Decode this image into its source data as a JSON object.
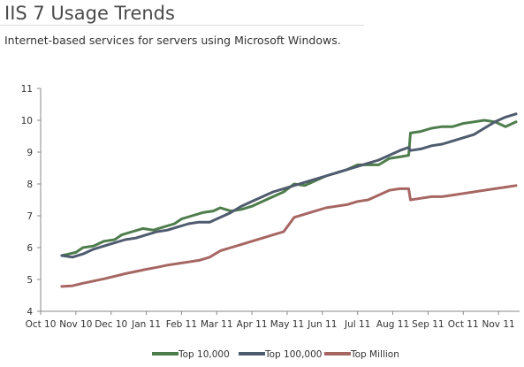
{
  "header": {
    "title": "IIS 7 Usage Trends",
    "subtitle": "Internet-based services for servers using Microsoft Windows."
  },
  "chart_data": {
    "type": "line",
    "title": "",
    "xlabel": "",
    "ylabel": "",
    "ylim": [
      4,
      11
    ],
    "yticks": [
      4,
      5,
      6,
      7,
      8,
      9,
      10,
      11
    ],
    "x_tick_labels": [
      "Oct 10",
      "Nov 10",
      "Dec 10",
      "Jan 11",
      "Feb 11",
      "Mar 11",
      "Apr 11",
      "May 11",
      "Jun 11",
      "Jul 11",
      "Aug 11",
      "Sep 11",
      "Oct 11",
      "Nov 11"
    ],
    "x_range": [
      0,
      13.6
    ],
    "grid": false,
    "legend": "bottom",
    "series": [
      {
        "name": "Top 10,000",
        "color": "#4e7d4c",
        "points": [
          [
            0.6,
            5.75
          ],
          [
            0.8,
            5.8
          ],
          [
            1.0,
            5.85
          ],
          [
            1.2,
            6.0
          ],
          [
            1.5,
            6.05
          ],
          [
            1.8,
            6.2
          ],
          [
            2.1,
            6.25
          ],
          [
            2.3,
            6.4
          ],
          [
            2.6,
            6.5
          ],
          [
            2.9,
            6.6
          ],
          [
            3.2,
            6.55
          ],
          [
            3.5,
            6.65
          ],
          [
            3.8,
            6.75
          ],
          [
            4.0,
            6.9
          ],
          [
            4.3,
            7.0
          ],
          [
            4.6,
            7.1
          ],
          [
            4.9,
            7.15
          ],
          [
            5.1,
            7.25
          ],
          [
            5.4,
            7.15
          ],
          [
            5.7,
            7.2
          ],
          [
            6.0,
            7.3
          ],
          [
            6.3,
            7.45
          ],
          [
            6.6,
            7.6
          ],
          [
            6.9,
            7.75
          ],
          [
            7.2,
            8.0
          ],
          [
            7.5,
            7.95
          ],
          [
            7.8,
            8.1
          ],
          [
            8.1,
            8.25
          ],
          [
            8.4,
            8.35
          ],
          [
            8.7,
            8.45
          ],
          [
            9.0,
            8.6
          ],
          [
            9.3,
            8.6
          ],
          [
            9.6,
            8.6
          ],
          [
            9.9,
            8.8
          ],
          [
            10.2,
            8.85
          ],
          [
            10.45,
            8.9
          ],
          [
            10.5,
            9.6
          ],
          [
            10.8,
            9.65
          ],
          [
            11.1,
            9.75
          ],
          [
            11.4,
            9.8
          ],
          [
            11.7,
            9.8
          ],
          [
            12.0,
            9.9
          ],
          [
            12.3,
            9.95
          ],
          [
            12.6,
            10.0
          ],
          [
            12.9,
            9.95
          ],
          [
            13.2,
            9.8
          ],
          [
            13.5,
            9.95
          ]
        ]
      },
      {
        "name": "Top 100,000",
        "color": "#4f5b6e",
        "points": [
          [
            0.6,
            5.75
          ],
          [
            0.9,
            5.7
          ],
          [
            1.2,
            5.8
          ],
          [
            1.5,
            5.95
          ],
          [
            1.8,
            6.05
          ],
          [
            2.1,
            6.15
          ],
          [
            2.4,
            6.25
          ],
          [
            2.7,
            6.3
          ],
          [
            3.0,
            6.4
          ],
          [
            3.3,
            6.5
          ],
          [
            3.6,
            6.55
          ],
          [
            3.9,
            6.65
          ],
          [
            4.2,
            6.75
          ],
          [
            4.5,
            6.8
          ],
          [
            4.8,
            6.8
          ],
          [
            5.1,
            6.95
          ],
          [
            5.4,
            7.1
          ],
          [
            5.7,
            7.3
          ],
          [
            6.0,
            7.45
          ],
          [
            6.3,
            7.6
          ],
          [
            6.6,
            7.75
          ],
          [
            6.9,
            7.85
          ],
          [
            7.2,
            7.95
          ],
          [
            7.5,
            8.05
          ],
          [
            7.8,
            8.15
          ],
          [
            8.1,
            8.25
          ],
          [
            8.4,
            8.35
          ],
          [
            8.7,
            8.45
          ],
          [
            9.0,
            8.55
          ],
          [
            9.3,
            8.65
          ],
          [
            9.6,
            8.75
          ],
          [
            9.9,
            8.9
          ],
          [
            10.2,
            9.05
          ],
          [
            10.45,
            9.15
          ],
          [
            10.5,
            9.05
          ],
          [
            10.8,
            9.1
          ],
          [
            11.1,
            9.2
          ],
          [
            11.4,
            9.25
          ],
          [
            11.7,
            9.35
          ],
          [
            12.0,
            9.45
          ],
          [
            12.3,
            9.55
          ],
          [
            12.6,
            9.75
          ],
          [
            12.9,
            9.95
          ],
          [
            13.2,
            10.1
          ],
          [
            13.5,
            10.2
          ]
        ]
      },
      {
        "name": "Top Million",
        "color": "#a66662",
        "points": [
          [
            0.6,
            4.78
          ],
          [
            0.9,
            4.8
          ],
          [
            1.2,
            4.88
          ],
          [
            1.5,
            4.95
          ],
          [
            1.8,
            5.02
          ],
          [
            2.1,
            5.1
          ],
          [
            2.4,
            5.18
          ],
          [
            2.7,
            5.25
          ],
          [
            3.0,
            5.32
          ],
          [
            3.3,
            5.38
          ],
          [
            3.6,
            5.45
          ],
          [
            3.9,
            5.5
          ],
          [
            4.2,
            5.55
          ],
          [
            4.5,
            5.6
          ],
          [
            4.8,
            5.7
          ],
          [
            5.1,
            5.9
          ],
          [
            5.4,
            6.0
          ],
          [
            5.7,
            6.1
          ],
          [
            6.0,
            6.2
          ],
          [
            6.3,
            6.3
          ],
          [
            6.6,
            6.4
          ],
          [
            6.9,
            6.5
          ],
          [
            7.2,
            6.95
          ],
          [
            7.5,
            7.05
          ],
          [
            7.8,
            7.15
          ],
          [
            8.1,
            7.25
          ],
          [
            8.4,
            7.3
          ],
          [
            8.7,
            7.35
          ],
          [
            9.0,
            7.45
          ],
          [
            9.3,
            7.5
          ],
          [
            9.6,
            7.65
          ],
          [
            9.9,
            7.8
          ],
          [
            10.2,
            7.85
          ],
          [
            10.45,
            7.85
          ],
          [
            10.5,
            7.5
          ],
          [
            10.8,
            7.55
          ],
          [
            11.1,
            7.6
          ],
          [
            11.4,
            7.6
          ],
          [
            11.7,
            7.65
          ],
          [
            12.0,
            7.7
          ],
          [
            12.3,
            7.75
          ],
          [
            12.6,
            7.8
          ],
          [
            12.9,
            7.85
          ],
          [
            13.2,
            7.9
          ],
          [
            13.5,
            7.95
          ]
        ]
      }
    ]
  }
}
